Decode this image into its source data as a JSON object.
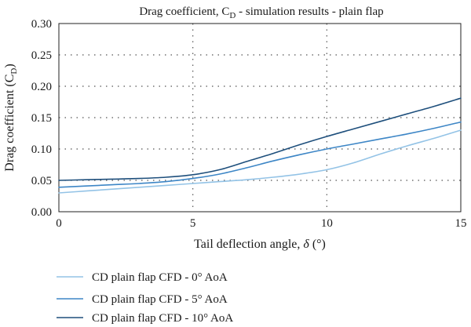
{
  "chart_data": {
    "type": "line",
    "title": "Drag coefficient, C_D - simulation results - plain flap",
    "title_parts": {
      "main": "Drag coefficient, C",
      "subscript": "D",
      "rest": " - simulation results - plain flap"
    },
    "xlabel": "Tail deflection angle, δ (°)",
    "xlabel_parts": {
      "pre": "Tail deflection angle, ",
      "symbol": "δ",
      "post": " (°)"
    },
    "ylabel": "Drag coefficient (C_D)",
    "ylabel_parts": {
      "pre": "Drag coefficient (C",
      "subscript": "D",
      "post": ")"
    },
    "xlim": [
      0,
      15
    ],
    "ylim": [
      0,
      0.3
    ],
    "xticks": [
      0,
      5,
      10,
      15
    ],
    "xtick_labels": [
      "0",
      "5",
      "10",
      "15"
    ],
    "yticks": [
      0,
      0.05,
      0.1,
      0.15,
      0.2,
      0.25,
      0.3
    ],
    "ytick_labels": [
      "0.00",
      "0.05",
      "0.10",
      "0.15",
      "0.20",
      "0.25",
      "0.30"
    ],
    "grid": true,
    "legend_position": "bottom-left, below plot",
    "series": [
      {
        "name": "CD plain flap CFD - 0° AoA",
        "color": "#93c3e6",
        "x": [
          0,
          1,
          2,
          3,
          4,
          5,
          6,
          7,
          8,
          9,
          10,
          11,
          12,
          13,
          14,
          15
        ],
        "y": [
          0.03,
          0.033,
          0.036,
          0.039,
          0.042,
          0.045,
          0.048,
          0.051,
          0.055,
          0.06,
          0.067,
          0.078,
          0.092,
          0.105,
          0.117,
          0.13
        ]
      },
      {
        "name": "CD plain flap CFD - 5° AoA",
        "color": "#3d86c6",
        "x": [
          0,
          1,
          2,
          3,
          4,
          5,
          6,
          7,
          8,
          9,
          10,
          11,
          12,
          13,
          14,
          15
        ],
        "y": [
          0.039,
          0.041,
          0.043,
          0.045,
          0.048,
          0.053,
          0.06,
          0.07,
          0.081,
          0.091,
          0.1,
          0.108,
          0.116,
          0.124,
          0.133,
          0.143
        ]
      },
      {
        "name": "CD plain flap CFD - 10° AoA",
        "color": "#1e4f7c",
        "x": [
          0,
          1,
          2,
          3,
          4,
          5,
          6,
          7,
          8,
          9,
          10,
          11,
          12,
          13,
          14,
          15
        ],
        "y": [
          0.05,
          0.051,
          0.052,
          0.053,
          0.055,
          0.059,
          0.067,
          0.08,
          0.093,
          0.107,
          0.12,
          0.132,
          0.144,
          0.156,
          0.168,
          0.181
        ]
      }
    ]
  }
}
